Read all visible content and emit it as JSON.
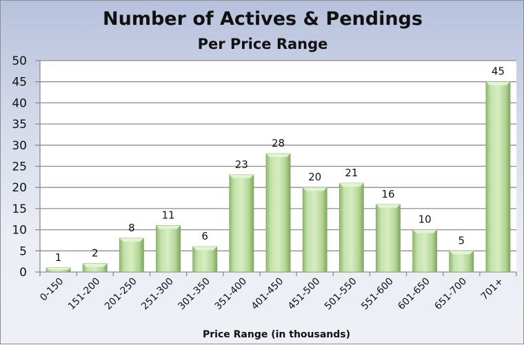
{
  "chart_data": {
    "type": "bar",
    "title": "Number of Actives & Pendings",
    "subtitle": "Per Price Range",
    "xlabel": "Price Range (in thousands)",
    "ylabel": "",
    "categories": [
      "0-150",
      "151-200",
      "201-250",
      "251-300",
      "301-350",
      "351-400",
      "401-450",
      "451-500",
      "501-550",
      "551-600",
      "601-650",
      "651-700",
      "701+"
    ],
    "values": [
      1,
      2,
      8,
      11,
      6,
      23,
      28,
      20,
      21,
      16,
      10,
      5,
      45
    ],
    "ylim": [
      0,
      50
    ],
    "yticks": [
      0,
      5,
      10,
      15,
      20,
      25,
      30,
      35,
      40,
      45,
      50
    ],
    "grid": true,
    "data_labels": true,
    "colors": {
      "bar": "#b5d99a",
      "bar_dark": "#7fa860",
      "grid": "#8c8c8c"
    }
  }
}
